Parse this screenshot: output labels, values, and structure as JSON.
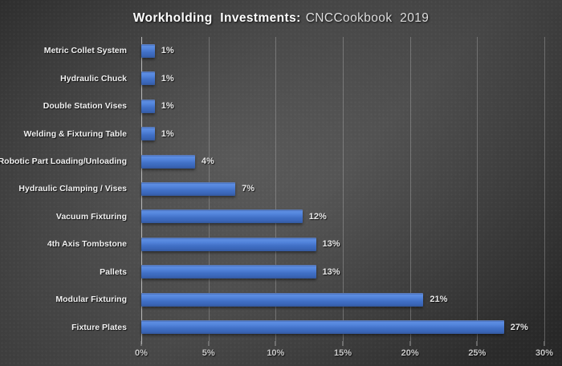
{
  "title": {
    "main": "Workholding Investments:",
    "suffix": "CNCCookbook 2019"
  },
  "chart_data": {
    "type": "bar",
    "orientation": "horizontal",
    "title": "Workholding Investments: CNCCookbook 2019",
    "categories": [
      "Metric Collet System",
      "Hydraulic Chuck",
      "Double Station Vises",
      "Welding & Fixturing Table",
      "Robotic Part Loading/Unloading",
      "Hydraulic Clamping / Vises",
      "Vacuum Fixturing",
      "4th Axis Tombstone",
      "Pallets",
      "Modular Fixturing",
      "Fixture Plates"
    ],
    "values": [
      1,
      1,
      1,
      1,
      4,
      7,
      12,
      13,
      13,
      21,
      27
    ],
    "value_labels": [
      "1%",
      "1%",
      "1%",
      "1%",
      "4%",
      "7%",
      "12%",
      "13%",
      "13%",
      "21%",
      "27%"
    ],
    "xlabel": "",
    "ylabel": "",
    "xlim": [
      0,
      30
    ],
    "x_ticks": [
      "0%",
      "5%",
      "10%",
      "15%",
      "20%",
      "25%",
      "30%"
    ],
    "grid": "vertical-only",
    "legend": "none"
  },
  "colors": {
    "bar_main": "#4472c4",
    "bar_highlight": "#5e8ee2",
    "bar_shadow_edge": "#34599f",
    "background_dark": "#262626",
    "background_light": "#454545",
    "axis_line": "#b9b9b9",
    "gridline": "#9a9a9a",
    "title_text": "#ffffff",
    "label_text": "#f2f2f2",
    "tick_text": "#c9c9c9"
  }
}
